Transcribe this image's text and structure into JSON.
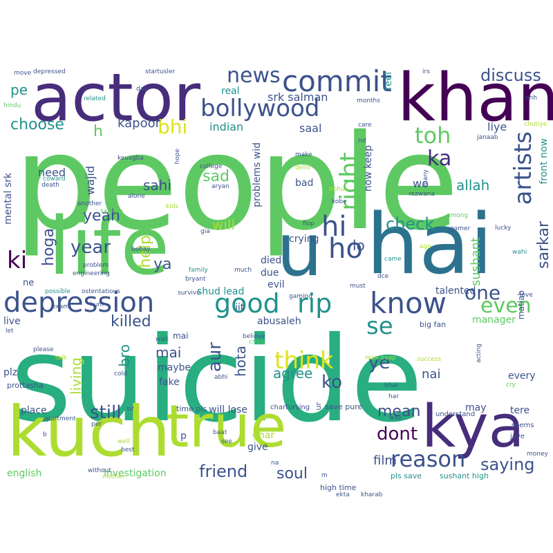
{
  "palette": {
    "purple": "#440154",
    "indigo": "#472d7b",
    "blue": "#3b528b",
    "teal_blue": "#2c728e",
    "teal": "#21918c",
    "green_teal": "#28ae80",
    "green": "#5ec962",
    "lime": "#addc30",
    "yellow": "#dde318"
  },
  "words": [
    {
      "text": "people",
      "color": "#5ec962"
    },
    {
      "text": "suicide",
      "color": "#28ae80"
    },
    {
      "text": "hai",
      "color": "#2c728e"
    },
    {
      "text": "life",
      "color": "#5ec962"
    },
    {
      "text": "khan",
      "color": "#440154"
    },
    {
      "text": "actor",
      "color": "#472d7b"
    },
    {
      "text": "kuch",
      "color": "#addc30"
    },
    {
      "text": "true",
      "color": "#addc30"
    },
    {
      "text": "kya",
      "color": "#472d7b"
    },
    {
      "text": "u",
      "color": "#2c728e"
    },
    {
      "text": "depression",
      "color": "#3b528b"
    },
    {
      "text": "good",
      "color": "#21918c"
    },
    {
      "text": "rip",
      "color": "#21918c"
    },
    {
      "text": "know",
      "color": "#3b528b"
    },
    {
      "text": "commit",
      "color": "#3b528b"
    },
    {
      "text": "bollywood",
      "color": "#3b528b"
    },
    {
      "text": "news",
      "color": "#3b528b"
    },
    {
      "text": "reason",
      "color": "#3b528b"
    },
    {
      "text": "ho",
      "color": "#3b528b"
    },
    {
      "text": "hi",
      "color": "#3b528b"
    },
    {
      "text": "right",
      "color": "#5ec962"
    },
    {
      "text": "artists",
      "color": "#3b528b"
    },
    {
      "text": "one",
      "color": "#3b528b"
    },
    {
      "text": "even",
      "color": "#5ec962"
    },
    {
      "text": "think",
      "color": "#dde318"
    },
    {
      "text": "se",
      "color": "#21918c"
    },
    {
      "text": "toh",
      "color": "#5ec962"
    },
    {
      "text": "ka",
      "color": "#472d7b"
    },
    {
      "text": "bhi",
      "color": "#dde318"
    },
    {
      "text": "choose",
      "color": "#21918c"
    },
    {
      "text": "discuss",
      "color": "#3b528b"
    },
    {
      "text": "ki",
      "color": "#440154"
    },
    {
      "text": "year",
      "color": "#3b528b"
    },
    {
      "text": "yeah",
      "color": "#3b528b"
    },
    {
      "text": "check",
      "color": "#21918c"
    },
    {
      "text": "friend",
      "color": "#3b528b"
    },
    {
      "text": "saying",
      "color": "#3b528b"
    },
    {
      "text": "dont",
      "color": "#440154"
    },
    {
      "text": "still",
      "color": "#3b528b"
    },
    {
      "text": "ye",
      "color": "#3b528b"
    },
    {
      "text": "ko",
      "color": "#3b528b"
    },
    {
      "text": "aur",
      "color": "#3b528b"
    },
    {
      "text": "killed",
      "color": "#3b528b"
    },
    {
      "text": "sad",
      "color": "#5ec962"
    },
    {
      "text": "sarkar",
      "color": "#3b528b"
    },
    {
      "text": "soul",
      "color": "#3b528b"
    },
    {
      "text": "mean",
      "color": "#3b528b"
    },
    {
      "text": "hoga",
      "color": "#3b528b"
    },
    {
      "text": "h",
      "color": "#5ec962"
    },
    {
      "text": "pe",
      "color": "#21918c"
    },
    {
      "text": "ya",
      "color": "#3b528b"
    },
    {
      "text": "lo",
      "color": "#3b528b"
    },
    {
      "text": "allah",
      "color": "#21918c"
    },
    {
      "text": "sahi",
      "color": "#3b528b"
    },
    {
      "text": "help",
      "color": "#addc30"
    },
    {
      "text": "will",
      "color": "#addc30"
    },
    {
      "text": "mai",
      "color": "#3b528b"
    },
    {
      "text": "living",
      "color": "#addc30"
    },
    {
      "text": "bro",
      "color": "#21918c"
    },
    {
      "text": "hota",
      "color": "#3b528b"
    },
    {
      "text": "agree",
      "color": "#21918c"
    },
    {
      "text": "nai",
      "color": "#3b528b"
    },
    {
      "text": "sushant",
      "color": "#5ec962"
    },
    {
      "text": "film",
      "color": "#3b528b"
    },
    {
      "text": "kapoor",
      "color": "#3b528b"
    },
    {
      "text": "indian",
      "color": "#21918c"
    },
    {
      "text": "srk salman",
      "color": "#3b528b"
    },
    {
      "text": "saal",
      "color": "#3b528b"
    },
    {
      "text": "wo",
      "color": "#3b528b"
    },
    {
      "text": "liye",
      "color": "#3b528b"
    },
    {
      "text": "need",
      "color": "#3b528b"
    },
    {
      "text": "wajid",
      "color": "#3b528b"
    },
    {
      "text": "mental srk",
      "color": "#3b528b"
    },
    {
      "text": "problems wid",
      "color": "#3b528b"
    },
    {
      "text": "now keep",
      "color": "#3b528b"
    },
    {
      "text": "front now",
      "color": "#21918c"
    },
    {
      "text": "real",
      "color": "#21918c"
    },
    {
      "text": "feel",
      "color": "#21918c"
    },
    {
      "text": "bad",
      "color": "#3b528b"
    },
    {
      "text": "crying",
      "color": "#3b528b"
    },
    {
      "text": "died",
      "color": "#3b528b"
    },
    {
      "text": "due",
      "color": "#3b528b"
    },
    {
      "text": "evil",
      "color": "#3b528b"
    },
    {
      "text": "shud lead",
      "color": "#21918c"
    },
    {
      "text": "talented",
      "color": "#3b528b"
    },
    {
      "text": "manager",
      "color": "#5ec962"
    },
    {
      "text": "every",
      "color": "#3b528b"
    },
    {
      "text": "abusaleh",
      "color": "#3b528b"
    },
    {
      "text": "iit",
      "color": "#3b528b"
    },
    {
      "text": "live",
      "color": "#3b528b"
    },
    {
      "text": "maybe",
      "color": "#3b528b"
    },
    {
      "text": "fake",
      "color": "#3b528b"
    },
    {
      "text": "plz",
      "color": "#3b528b"
    },
    {
      "text": "place",
      "color": "#3b528b"
    },
    {
      "text": "will lose",
      "color": "#3b528b"
    },
    {
      "text": "ghar",
      "color": "#addc30"
    },
    {
      "text": "give",
      "color": "#3b528b"
    },
    {
      "text": "may",
      "color": "#3b528b"
    },
    {
      "text": "tere",
      "color": "#3b528b"
    },
    {
      "text": "p",
      "color": "#3b528b"
    },
    {
      "text": "english",
      "color": "#5ec962"
    },
    {
      "text": "investigation",
      "color": "#5ec962"
    },
    {
      "text": "ne",
      "color": "#3b528b"
    },
    {
      "text": "matlab",
      "color": "#3b528b"
    },
    {
      "text": "mai",
      "color": "#3b528b"
    },
    {
      "text": "save pure",
      "color": "#3b528b"
    },
    {
      "text": "ur",
      "color": "#3b528b"
    },
    {
      "text": "high time",
      "color": "#3b528b"
    },
    {
      "text": "pls save",
      "color": "#21918c"
    },
    {
      "text": "sushant high",
      "color": "#21918c"
    },
    {
      "text": "time pls",
      "color": "#3b528b"
    },
    {
      "text": "big fan",
      "color": "#3b528b"
    },
    {
      "text": "prottasha",
      "color": "#3b528b"
    },
    {
      "text": "chartursing",
      "color": "#3b528b"
    },
    {
      "text": "understand",
      "color": "#3b528b"
    },
    {
      "text": "seems",
      "color": "#3b528b"
    },
    {
      "text": "jaye",
      "color": "#3b528b"
    },
    {
      "text": "money",
      "color": "#3b528b"
    },
    {
      "text": "depressed",
      "color": "#3b528b"
    },
    {
      "text": "startusler",
      "color": "#3b528b"
    },
    {
      "text": "irs",
      "color": "#3b528b"
    },
    {
      "text": "move",
      "color": "#3b528b"
    },
    {
      "text": "hindu",
      "color": "#5ec962"
    },
    {
      "text": "related",
      "color": "#21918c"
    },
    {
      "text": "day",
      "color": "#3b528b"
    },
    {
      "text": "months",
      "color": "#3b528b"
    },
    {
      "text": "ohh",
      "color": "#3b528b"
    },
    {
      "text": "care",
      "color": "#3b528b"
    },
    {
      "text": "janaab",
      "color": "#3b528b"
    },
    {
      "text": "chutiye",
      "color": "#addc30"
    },
    {
      "text": "nd",
      "color": "#3b528b"
    },
    {
      "text": "keusgba",
      "color": "#3b528b"
    },
    {
      "text": "hope",
      "color": "#3b528b"
    },
    {
      "text": "make",
      "color": "#3b528b"
    },
    {
      "text": "coward",
      "color": "#21918c"
    },
    {
      "text": "college",
      "color": "#3b528b"
    },
    {
      "text": "delhi",
      "color": "#addc30"
    },
    {
      "text": "many",
      "color": "#3b528b"
    },
    {
      "text": "death",
      "color": "#3b528b"
    },
    {
      "text": "aryan",
      "color": "#3b528b"
    },
    {
      "text": "alone",
      "color": "#3b528b"
    },
    {
      "text": "bohut",
      "color": "#addc30"
    },
    {
      "text": "kobe",
      "color": "#3b528b"
    },
    {
      "text": "rezwana",
      "color": "#3b528b"
    },
    {
      "text": "another",
      "color": "#3b528b"
    },
    {
      "text": "kids",
      "color": "#addc30"
    },
    {
      "text": "salman",
      "color": "#5ec962"
    },
    {
      "text": "flop",
      "color": "#3b528b"
    },
    {
      "text": "among",
      "color": "#5ec962"
    },
    {
      "text": "gamer",
      "color": "#3b528b"
    },
    {
      "text": "lucky",
      "color": "#3b528b"
    },
    {
      "text": "gia",
      "color": "#3b528b"
    },
    {
      "text": "ago",
      "color": "#addc30"
    },
    {
      "text": "wahi",
      "color": "#21918c"
    },
    {
      "text": "bohay",
      "color": "#3b528b"
    },
    {
      "text": "problem",
      "color": "#3b528b"
    },
    {
      "text": "engineering",
      "color": "#3b528b"
    },
    {
      "text": "family",
      "color": "#21918c"
    },
    {
      "text": "bryant",
      "color": "#3b528b"
    },
    {
      "text": "much",
      "color": "#3b528b"
    },
    {
      "text": "came",
      "color": "#21918c"
    },
    {
      "text": "possible",
      "color": "#21918c"
    },
    {
      "text": "ostentatious",
      "color": "#3b528b"
    },
    {
      "text": "survive",
      "color": "#3b528b"
    },
    {
      "text": "must",
      "color": "#3b528b"
    },
    {
      "text": "dce",
      "color": "#3b528b"
    },
    {
      "text": "love",
      "color": "#3b528b"
    },
    {
      "text": "gaming",
      "color": "#3b528b"
    },
    {
      "text": "exam",
      "color": "#3b528b"
    },
    {
      "text": "hum",
      "color": "#3b528b"
    },
    {
      "text": "let",
      "color": "#3b528b"
    },
    {
      "text": "wait",
      "color": "#3b528b"
    },
    {
      "text": "believe",
      "color": "#3b528b"
    },
    {
      "text": "crisis",
      "color": "#5ec962"
    },
    {
      "text": "maa baap",
      "color": "#addc30"
    },
    {
      "text": "acting",
      "color": "#3b528b"
    },
    {
      "text": "please",
      "color": "#3b528b"
    },
    {
      "text": "talk",
      "color": "#addc30"
    },
    {
      "text": "success",
      "color": "#addc30"
    },
    {
      "text": "cold",
      "color": "#3b528b"
    },
    {
      "text": "abhi",
      "color": "#3b528b"
    },
    {
      "text": "bhai",
      "color": "#3b528b"
    },
    {
      "text": "cry",
      "color": "#5ec962"
    },
    {
      "text": "apartment",
      "color": "#3b528b"
    },
    {
      "text": "sir",
      "color": "#3b528b"
    },
    {
      "text": "har",
      "color": "#3b528b"
    },
    {
      "text": "way",
      "color": "#3b528b"
    },
    {
      "text": "per",
      "color": "#3b528b"
    },
    {
      "text": "baat",
      "color": "#3b528b"
    },
    {
      "text": "b",
      "color": "#3b528b"
    },
    {
      "text": "well",
      "color": "#addc30"
    },
    {
      "text": "best",
      "color": "#3b528b"
    },
    {
      "text": "see",
      "color": "#3b528b"
    },
    {
      "text": "na",
      "color": "#3b528b"
    },
    {
      "text": "without",
      "color": "#3b528b"
    },
    {
      "text": "mother",
      "color": "#addc30"
    },
    {
      "text": "ekta",
      "color": "#3b528b"
    },
    {
      "text": "kharab",
      "color": "#3b528b"
    },
    {
      "text": "m",
      "color": "#3b528b"
    }
  ]
}
